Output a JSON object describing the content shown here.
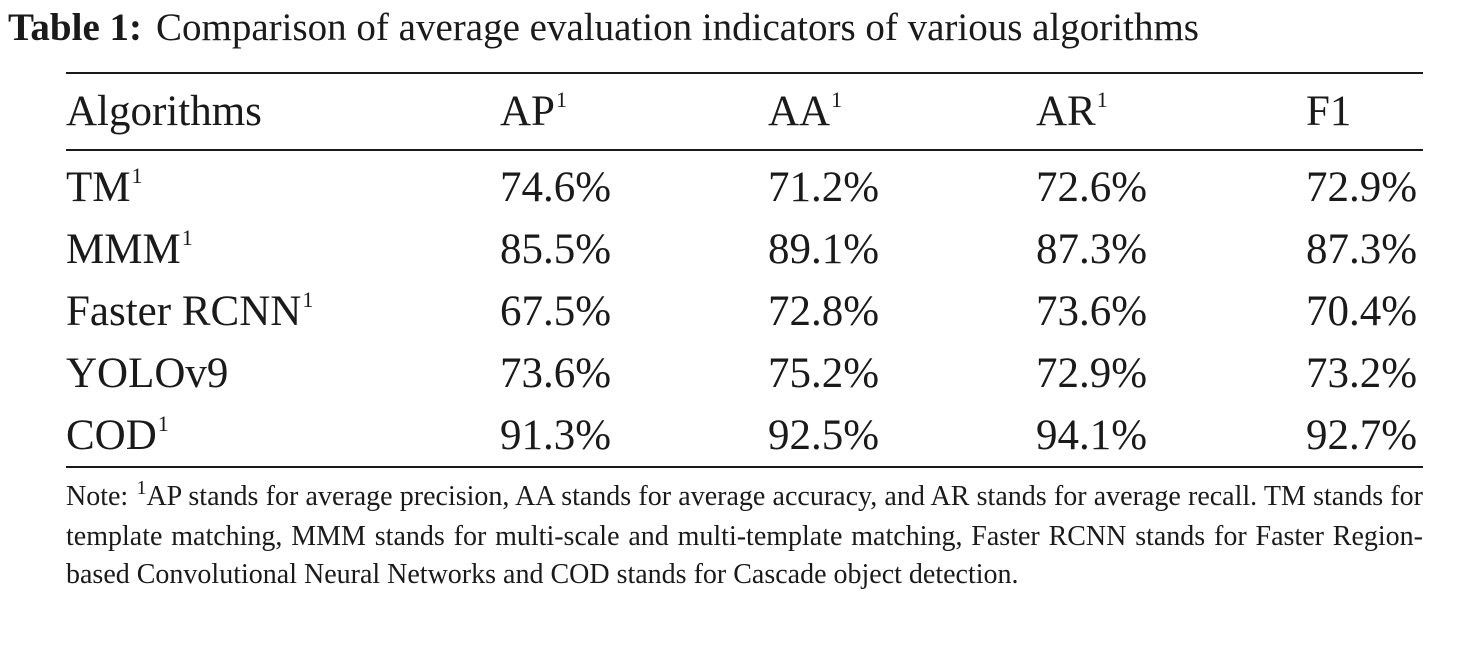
{
  "caption": {
    "label": "Table 1:",
    "text": "Comparison of average evaluation indicators of various algorithms"
  },
  "table": {
    "header": [
      {
        "text": "Algorithms",
        "footnote": ""
      },
      {
        "text": "AP",
        "footnote": "1"
      },
      {
        "text": "AA",
        "footnote": "1"
      },
      {
        "text": "AR",
        "footnote": "1"
      },
      {
        "text": "F1",
        "footnote": ""
      }
    ],
    "rows": [
      {
        "name": "TM",
        "footnote": "1",
        "values": [
          "74.6%",
          "71.2%",
          "72.6%",
          "72.9%"
        ]
      },
      {
        "name": "MMM",
        "footnote": "1",
        "values": [
          "85.5%",
          "89.1%",
          "87.3%",
          "87.3%"
        ]
      },
      {
        "name": "Faster RCNN",
        "footnote": "1",
        "values": [
          "67.5%",
          "72.8%",
          "73.6%",
          "70.4%"
        ]
      },
      {
        "name": "YOLOv9",
        "footnote": "",
        "values": [
          "73.6%",
          "75.2%",
          "72.9%",
          "73.2%"
        ]
      },
      {
        "name": "COD",
        "footnote": "1",
        "values": [
          "91.3%",
          "92.5%",
          "94.1%",
          "92.7%"
        ]
      }
    ]
  },
  "note": {
    "prefix": "Note: ",
    "footnote": "1",
    "text": "AP stands for average precision, AA stands for average accuracy, and AR stands for average recall. TM stands for template matching, MMM stands for multi-scale and multi-template matching, Faster RCNN stands for Faster Region-based Convolutional Neural Networks and COD stands for Cascade object detection."
  }
}
